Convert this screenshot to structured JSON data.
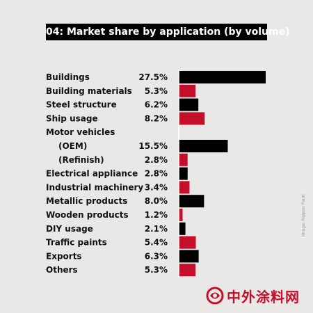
{
  "chart_data": {
    "type": "bar",
    "title": "04: Market share by application (by volume)",
    "unit": "%",
    "colors": {
      "odd": "#000000",
      "even": "#c40f2a"
    },
    "rows": [
      {
        "label": "Buildings",
        "value": 27.5,
        "display": "27.5%"
      },
      {
        "label": "Building materials",
        "value": 5.3,
        "display": "5.3%"
      },
      {
        "label": "Steel structure",
        "value": 6.2,
        "display": "6.2%"
      },
      {
        "label": "Ship usage",
        "value": 8.2,
        "display": "8.2%"
      },
      {
        "label": "Motor vehicles",
        "value": null,
        "display": ""
      },
      {
        "label": "(OEM)",
        "value": 15.5,
        "display": "15.5%",
        "indent": true
      },
      {
        "label": "(Refinish)",
        "value": 2.8,
        "display": "2.8%",
        "indent": true
      },
      {
        "label": "Electrical appliance",
        "value": 2.8,
        "display": "2.8%"
      },
      {
        "label": "Industrial machinery",
        "value": 3.4,
        "display": "3.4%"
      },
      {
        "label": "Metallic products",
        "value": 8.0,
        "display": "8.0%"
      },
      {
        "label": "Wooden products",
        "value": 1.2,
        "display": "1.2%"
      },
      {
        "label": "DIY usage",
        "value": 2.1,
        "display": "2.1%"
      },
      {
        "label": "Traffic paints",
        "value": 5.4,
        "display": "5.4%"
      },
      {
        "label": "Exports",
        "value": 6.3,
        "display": "6.3%"
      },
      {
        "label": "Others",
        "value": 5.3,
        "display": "5.3%"
      }
    ]
  },
  "credit": "Image: Nippon Paint",
  "watermark": "中外涂料网"
}
